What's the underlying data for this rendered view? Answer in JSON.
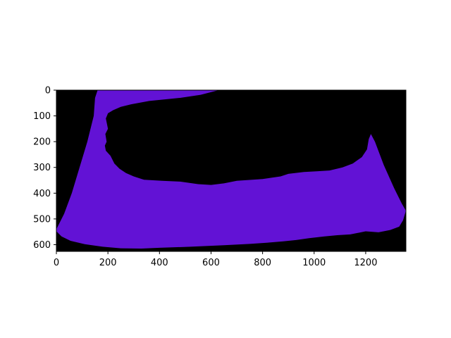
{
  "figure": {
    "background_color": "#000000",
    "mask_color": "#6212d5",
    "axes_color": "#000000"
  },
  "image_extent": {
    "x_range": [
      0,
      1356
    ],
    "y_range": [
      0,
      626
    ],
    "y_inverted": true
  },
  "x_axis": {
    "ticks": [
      0,
      200,
      400,
      600,
      800,
      1000,
      1200
    ],
    "tick_labels": [
      "0",
      "200",
      "400",
      "600",
      "800",
      "1000",
      "1200"
    ]
  },
  "y_axis": {
    "ticks": [
      0,
      100,
      200,
      300,
      400,
      500,
      600
    ],
    "tick_labels": [
      "0",
      "100",
      "200",
      "300",
      "400",
      "500",
      "600"
    ]
  },
  "mask_outline": [
    [
      160,
      0
    ],
    [
      630,
      0
    ],
    [
      560,
      18
    ],
    [
      480,
      30
    ],
    [
      360,
      42
    ],
    [
      290,
      55
    ],
    [
      250,
      65
    ],
    [
      220,
      78
    ],
    [
      200,
      90
    ],
    [
      192,
      110
    ],
    [
      196,
      130
    ],
    [
      200,
      150
    ],
    [
      190,
      170
    ],
    [
      195,
      200
    ],
    [
      188,
      215
    ],
    [
      192,
      235
    ],
    [
      210,
      255
    ],
    [
      225,
      285
    ],
    [
      245,
      305
    ],
    [
      270,
      322
    ],
    [
      300,
      335
    ],
    [
      340,
      348
    ],
    [
      410,
      352
    ],
    [
      480,
      355
    ],
    [
      550,
      365
    ],
    [
      600,
      368
    ],
    [
      650,
      362
    ],
    [
      700,
      352
    ],
    [
      800,
      345
    ],
    [
      870,
      335
    ],
    [
      900,
      325
    ],
    [
      960,
      318
    ],
    [
      1010,
      315
    ],
    [
      1060,
      312
    ],
    [
      1110,
      300
    ],
    [
      1150,
      285
    ],
    [
      1185,
      260
    ],
    [
      1205,
      230
    ],
    [
      1212,
      190
    ],
    [
      1220,
      170
    ],
    [
      1236,
      200
    ],
    [
      1270,
      290
    ],
    [
      1310,
      380
    ],
    [
      1340,
      440
    ],
    [
      1356,
      468
    ],
    [
      1345,
      505
    ],
    [
      1330,
      530
    ],
    [
      1295,
      543
    ],
    [
      1250,
      552
    ],
    [
      1200,
      548
    ],
    [
      1140,
      560
    ],
    [
      1090,
      563
    ],
    [
      1040,
      568
    ],
    [
      980,
      575
    ],
    [
      930,
      582
    ],
    [
      880,
      587
    ],
    [
      820,
      592
    ],
    [
      750,
      597
    ],
    [
      650,
      602
    ],
    [
      520,
      608
    ],
    [
      400,
      612
    ],
    [
      330,
      615
    ],
    [
      250,
      614
    ],
    [
      180,
      608
    ],
    [
      110,
      598
    ],
    [
      55,
      585
    ],
    [
      20,
      568
    ],
    [
      0,
      548
    ],
    [
      0,
      540
    ],
    [
      30,
      480
    ],
    [
      60,
      400
    ],
    [
      90,
      300
    ],
    [
      120,
      200
    ],
    [
      145,
      100
    ],
    [
      150,
      30
    ]
  ]
}
